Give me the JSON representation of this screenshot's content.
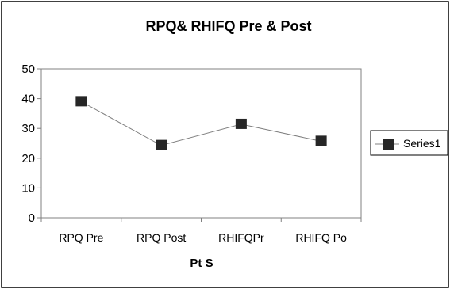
{
  "chart_data": {
    "type": "line",
    "title": "RPQ& RHIFQ Pre & Post",
    "xlabel": "Pt S",
    "ylabel": "",
    "categories": [
      "RPQ Pre",
      "RPQ Post",
      "RHIFQPr",
      "RHIFQ Po"
    ],
    "series": [
      {
        "name": "Series1",
        "values": [
          39,
          24.3,
          31.4,
          25.7
        ]
      }
    ],
    "ylim": [
      0,
      50
    ],
    "yticks": [
      0,
      10,
      20,
      30,
      40,
      50
    ],
    "grid": false,
    "legend": "right",
    "colors": {
      "line": "#808080",
      "marker": "#262626",
      "axis": "#808080",
      "border": "#000000"
    }
  }
}
